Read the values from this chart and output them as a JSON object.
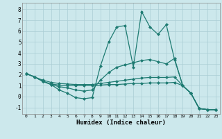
{
  "xlabel": "Humidex (Indice chaleur)",
  "background_color": "#cce8ec",
  "grid_color": "#aacdd4",
  "line_color": "#1e7b72",
  "marker": "D",
  "markersize": 2.0,
  "linewidth": 0.9,
  "xlim": [
    -0.5,
    23.5
  ],
  "ylim": [
    -1.6,
    8.6
  ],
  "xticks": [
    0,
    1,
    2,
    3,
    4,
    5,
    6,
    7,
    8,
    9,
    10,
    11,
    12,
    13,
    14,
    15,
    16,
    17,
    18,
    19,
    20,
    21,
    22,
    23
  ],
  "yticks": [
    -1,
    0,
    1,
    2,
    3,
    4,
    5,
    6,
    7,
    8
  ],
  "series": [
    {
      "x": [
        0,
        1,
        2,
        3,
        4,
        5,
        6,
        7,
        8,
        9,
        10,
        11,
        12,
        13,
        14,
        15,
        16,
        17,
        18,
        19,
        20,
        21,
        22,
        23
      ],
      "y": [
        2.1,
        1.8,
        1.4,
        1.1,
        0.6,
        0.3,
        -0.1,
        -0.2,
        -0.1,
        2.8,
        5.0,
        6.4,
        6.5,
        2.7,
        7.8,
        6.4,
        5.7,
        6.6,
        3.4,
        1.0,
        0.3,
        -1.1,
        -1.2,
        -1.2
      ]
    },
    {
      "x": [
        0,
        1,
        2,
        3,
        4,
        5,
        6,
        7,
        8,
        9,
        10,
        11,
        12,
        13,
        14,
        15,
        16,
        17,
        18,
        19,
        20,
        21,
        22,
        23
      ],
      "y": [
        2.1,
        1.8,
        1.4,
        1.1,
        0.9,
        0.8,
        0.6,
        0.5,
        0.6,
        1.5,
        2.2,
        2.7,
        2.9,
        3.1,
        3.3,
        3.4,
        3.2,
        3.0,
        3.5,
        1.0,
        0.3,
        -1.1,
        -1.2,
        -1.2
      ]
    },
    {
      "x": [
        0,
        1,
        2,
        3,
        4,
        5,
        6,
        7,
        8,
        9,
        10,
        11,
        12,
        13,
        14,
        15,
        16,
        17,
        18,
        19,
        20,
        21,
        22,
        23
      ],
      "y": [
        2.1,
        1.8,
        1.5,
        1.3,
        1.2,
        1.15,
        1.1,
        1.1,
        1.1,
        1.2,
        1.3,
        1.4,
        1.5,
        1.6,
        1.7,
        1.75,
        1.75,
        1.75,
        1.8,
        1.0,
        0.3,
        -1.1,
        -1.2,
        -1.2
      ]
    },
    {
      "x": [
        0,
        1,
        2,
        3,
        4,
        5,
        6,
        7,
        8,
        9,
        10,
        11,
        12,
        13,
        14,
        15,
        16,
        17,
        18,
        19,
        20,
        21,
        22,
        23
      ],
      "y": [
        2.1,
        1.8,
        1.4,
        1.15,
        1.05,
        1.0,
        1.0,
        1.0,
        1.0,
        1.05,
        1.1,
        1.1,
        1.15,
        1.2,
        1.2,
        1.25,
        1.25,
        1.25,
        1.3,
        1.0,
        0.3,
        -1.1,
        -1.2,
        -1.2
      ]
    }
  ]
}
